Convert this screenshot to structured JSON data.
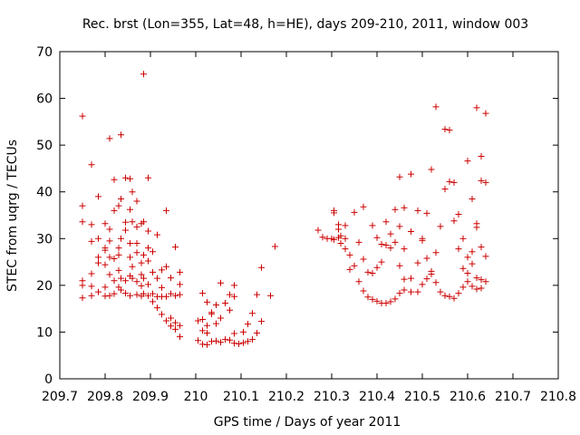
{
  "chart_data": {
    "type": "scatter",
    "title": "Rec. brst (Lon=355, Lat=48, h=HE), days 209-210, 2011, window 003",
    "xlabel": "GPS time / Days of year 2011",
    "ylabel": "STEC from uqrg / TECUs",
    "xlim": [
      209.7,
      210.8
    ],
    "ylim": [
      0,
      70
    ],
    "xticks": [
      "209.7",
      "209.8",
      "209.9",
      "210",
      "210.1",
      "210.2",
      "210.3",
      "210.4",
      "210.5",
      "210.6",
      "210.7",
      "210.8"
    ],
    "yticks": [
      "0",
      "10",
      "20",
      "30",
      "40",
      "50",
      "60",
      "70"
    ],
    "grid": false,
    "marker": "+",
    "color": "#cc0000",
    "points": [
      [
        209.75,
        56.2
      ],
      [
        209.75,
        37.0
      ],
      [
        209.75,
        33.6
      ],
      [
        209.75,
        21.0
      ],
      [
        209.75,
        20.0
      ],
      [
        209.75,
        17.3
      ],
      [
        209.77,
        45.8
      ],
      [
        209.77,
        33.0
      ],
      [
        209.77,
        29.4
      ],
      [
        209.77,
        22.5
      ],
      [
        209.77,
        19.8
      ],
      [
        209.77,
        17.8
      ],
      [
        209.785,
        39.0
      ],
      [
        209.785,
        30.0
      ],
      [
        209.785,
        26.0
      ],
      [
        209.785,
        24.8
      ],
      [
        209.785,
        18.6
      ],
      [
        209.8,
        33.2
      ],
      [
        209.8,
        28.0
      ],
      [
        209.8,
        27.5
      ],
      [
        209.8,
        24.4
      ],
      [
        209.8,
        19.6
      ],
      [
        209.8,
        17.7
      ],
      [
        209.81,
        51.4
      ],
      [
        209.81,
        32.0
      ],
      [
        209.81,
        29.5
      ],
      [
        209.81,
        26.0
      ],
      [
        209.81,
        22.3
      ],
      [
        209.81,
        17.8
      ],
      [
        209.82,
        42.6
      ],
      [
        209.82,
        36.0
      ],
      [
        209.82,
        25.7
      ],
      [
        209.82,
        21.0
      ],
      [
        209.82,
        18.2
      ],
      [
        209.83,
        37.0
      ],
      [
        209.83,
        28.0
      ],
      [
        209.83,
        26.5
      ],
      [
        209.83,
        23.2
      ],
      [
        209.83,
        19.6
      ],
      [
        209.835,
        52.2
      ],
      [
        209.835,
        38.5
      ],
      [
        209.835,
        30.0
      ],
      [
        209.835,
        21.5
      ],
      [
        209.835,
        19.0
      ],
      [
        209.845,
        43.0
      ],
      [
        209.845,
        33.5
      ],
      [
        209.845,
        31.8
      ],
      [
        209.845,
        21.0
      ],
      [
        209.845,
        18.3
      ],
      [
        209.855,
        42.8
      ],
      [
        209.855,
        36.2
      ],
      [
        209.855,
        29.0
      ],
      [
        209.855,
        26.0
      ],
      [
        209.855,
        22.0
      ],
      [
        209.855,
        17.8
      ],
      [
        209.86,
        40.0
      ],
      [
        209.86,
        33.6
      ],
      [
        209.86,
        24.0
      ],
      [
        209.86,
        21.5
      ],
      [
        209.87,
        38.0
      ],
      [
        209.87,
        32.5
      ],
      [
        209.87,
        29.0
      ],
      [
        209.87,
        27.0
      ],
      [
        209.87,
        20.8
      ],
      [
        209.87,
        18.0
      ],
      [
        209.88,
        33.2
      ],
      [
        209.88,
        24.8
      ],
      [
        209.88,
        22.3
      ],
      [
        209.88,
        19.9
      ],
      [
        209.88,
        17.7
      ],
      [
        209.885,
        65.2
      ],
      [
        209.885,
        33.6
      ],
      [
        209.885,
        26.5
      ],
      [
        209.885,
        21.5
      ],
      [
        209.885,
        18.2
      ],
      [
        209.895,
        43.0
      ],
      [
        209.895,
        31.6
      ],
      [
        209.895,
        28.0
      ],
      [
        209.895,
        25.2
      ],
      [
        209.895,
        20.2
      ],
      [
        209.895,
        17.8
      ],
      [
        209.905,
        27.2
      ],
      [
        209.905,
        22.8
      ],
      [
        209.905,
        18.2
      ],
      [
        209.905,
        16.5
      ],
      [
        209.915,
        30.8
      ],
      [
        209.915,
        21.5
      ],
      [
        209.915,
        17.6
      ],
      [
        209.915,
        15.2
      ],
      [
        209.925,
        23.3
      ],
      [
        209.925,
        19.5
      ],
      [
        209.925,
        17.6
      ],
      [
        209.925,
        13.8
      ],
      [
        209.935,
        36.0
      ],
      [
        209.935,
        24.0
      ],
      [
        209.935,
        17.6
      ],
      [
        209.935,
        12.4
      ],
      [
        209.945,
        21.6
      ],
      [
        209.945,
        18.2
      ],
      [
        209.945,
        13.0
      ],
      [
        209.945,
        11.3
      ],
      [
        209.955,
        28.2
      ],
      [
        209.955,
        17.8
      ],
      [
        209.955,
        12.0
      ],
      [
        209.955,
        10.6
      ],
      [
        209.965,
        22.8
      ],
      [
        209.965,
        20.2
      ],
      [
        209.965,
        18.0
      ],
      [
        209.965,
        11.4
      ],
      [
        209.965,
        9.0
      ],
      [
        210.005,
        12.4
      ],
      [
        210.005,
        8.2
      ],
      [
        210.015,
        18.3
      ],
      [
        210.015,
        12.7
      ],
      [
        210.015,
        10.3
      ],
      [
        210.015,
        7.4
      ],
      [
        210.025,
        16.4
      ],
      [
        210.025,
        11.4
      ],
      [
        210.025,
        9.8
      ],
      [
        210.025,
        7.3
      ],
      [
        210.035,
        14.2
      ],
      [
        210.035,
        13.9
      ],
      [
        210.035,
        8.0
      ],
      [
        210.045,
        15.8
      ],
      [
        210.045,
        11.8
      ],
      [
        210.045,
        8.1
      ],
      [
        210.055,
        20.5
      ],
      [
        210.055,
        13.0
      ],
      [
        210.055,
        7.8
      ],
      [
        210.065,
        16.2
      ],
      [
        210.065,
        8.4
      ],
      [
        210.075,
        18.0
      ],
      [
        210.075,
        14.7
      ],
      [
        210.075,
        8.3
      ],
      [
        210.085,
        20.0
      ],
      [
        210.085,
        17.6
      ],
      [
        210.085,
        9.7
      ],
      [
        210.085,
        7.6
      ],
      [
        210.095,
        7.5
      ],
      [
        210.105,
        10.0
      ],
      [
        210.105,
        7.7
      ],
      [
        210.115,
        11.7
      ],
      [
        210.115,
        8.0
      ],
      [
        210.125,
        14.0
      ],
      [
        210.125,
        8.4
      ],
      [
        210.135,
        18.0
      ],
      [
        210.135,
        9.8
      ],
      [
        210.145,
        23.8
      ],
      [
        210.145,
        12.3
      ],
      [
        210.165,
        17.8
      ],
      [
        210.175,
        28.3
      ],
      [
        210.27,
        31.8
      ],
      [
        210.28,
        30.3
      ],
      [
        210.29,
        30.0
      ],
      [
        210.3,
        30.0
      ],
      [
        210.305,
        36.0
      ],
      [
        210.305,
        35.5
      ],
      [
        210.305,
        29.8
      ],
      [
        210.315,
        33.0
      ],
      [
        210.315,
        32.0
      ],
      [
        210.315,
        30.2
      ],
      [
        210.32,
        30.6
      ],
      [
        210.32,
        29.0
      ],
      [
        210.33,
        32.8
      ],
      [
        210.33,
        30.0
      ],
      [
        210.33,
        27.8
      ],
      [
        210.34,
        26.5
      ],
      [
        210.34,
        23.4
      ],
      [
        210.35,
        35.6
      ],
      [
        210.35,
        24.2
      ],
      [
        210.36,
        29.2
      ],
      [
        210.36,
        20.8
      ],
      [
        210.37,
        36.8
      ],
      [
        210.37,
        25.6
      ],
      [
        210.37,
        18.8
      ],
      [
        210.38,
        22.8
      ],
      [
        210.38,
        17.5
      ],
      [
        210.39,
        32.8
      ],
      [
        210.39,
        22.6
      ],
      [
        210.39,
        17.0
      ],
      [
        210.4,
        30.2
      ],
      [
        210.4,
        23.8
      ],
      [
        210.4,
        16.6
      ],
      [
        210.41,
        28.8
      ],
      [
        210.41,
        25.0
      ],
      [
        210.41,
        16.2
      ],
      [
        210.42,
        33.6
      ],
      [
        210.42,
        28.6
      ],
      [
        210.42,
        16.2
      ],
      [
        210.43,
        31.0
      ],
      [
        210.43,
        28.0
      ],
      [
        210.43,
        16.5
      ],
      [
        210.44,
        36.2
      ],
      [
        210.44,
        29.2
      ],
      [
        210.44,
        17.1
      ],
      [
        210.45,
        43.2
      ],
      [
        210.45,
        32.6
      ],
      [
        210.45,
        24.2
      ],
      [
        210.45,
        18.3
      ],
      [
        210.46,
        36.6
      ],
      [
        210.46,
        27.8
      ],
      [
        210.46,
        21.3
      ],
      [
        210.46,
        19.0
      ],
      [
        210.475,
        43.8
      ],
      [
        210.475,
        31.5
      ],
      [
        210.475,
        21.5
      ],
      [
        210.475,
        18.6
      ],
      [
        210.49,
        36.0
      ],
      [
        210.49,
        24.8
      ],
      [
        210.49,
        18.6
      ],
      [
        210.5,
        30.0
      ],
      [
        210.5,
        29.6
      ],
      [
        210.5,
        20.2
      ],
      [
        210.51,
        35.4
      ],
      [
        210.51,
        25.8
      ],
      [
        210.51,
        21.4
      ],
      [
        210.52,
        44.8
      ],
      [
        210.52,
        23.0
      ],
      [
        210.52,
        22.4
      ],
      [
        210.53,
        58.2
      ],
      [
        210.53,
        27.0
      ],
      [
        210.53,
        20.6
      ],
      [
        210.54,
        32.6
      ],
      [
        210.54,
        18.6
      ],
      [
        210.55,
        53.4
      ],
      [
        210.55,
        40.6
      ],
      [
        210.55,
        17.8
      ],
      [
        210.56,
        53.2
      ],
      [
        210.56,
        42.2
      ],
      [
        210.56,
        17.6
      ],
      [
        210.57,
        42.0
      ],
      [
        210.57,
        33.8
      ],
      [
        210.57,
        17.2
      ],
      [
        210.58,
        35.2
      ],
      [
        210.58,
        27.8
      ],
      [
        210.58,
        18.3
      ],
      [
        210.59,
        30.0
      ],
      [
        210.59,
        23.6
      ],
      [
        210.59,
        19.6
      ],
      [
        210.6,
        46.6
      ],
      [
        210.6,
        26.0
      ],
      [
        210.6,
        22.6
      ],
      [
        210.6,
        20.8
      ],
      [
        210.61,
        38.5
      ],
      [
        210.61,
        27.2
      ],
      [
        210.61,
        24.6
      ],
      [
        210.61,
        19.8
      ],
      [
        210.62,
        58.0
      ],
      [
        210.62,
        33.2
      ],
      [
        210.62,
        32.4
      ],
      [
        210.62,
        21.6
      ],
      [
        210.62,
        19.2
      ],
      [
        210.63,
        47.6
      ],
      [
        210.63,
        42.4
      ],
      [
        210.63,
        28.2
      ],
      [
        210.63,
        21.2
      ],
      [
        210.63,
        19.4
      ],
      [
        210.64,
        56.8
      ],
      [
        210.64,
        42.0
      ],
      [
        210.64,
        26.2
      ],
      [
        210.64,
        20.8
      ]
    ]
  }
}
